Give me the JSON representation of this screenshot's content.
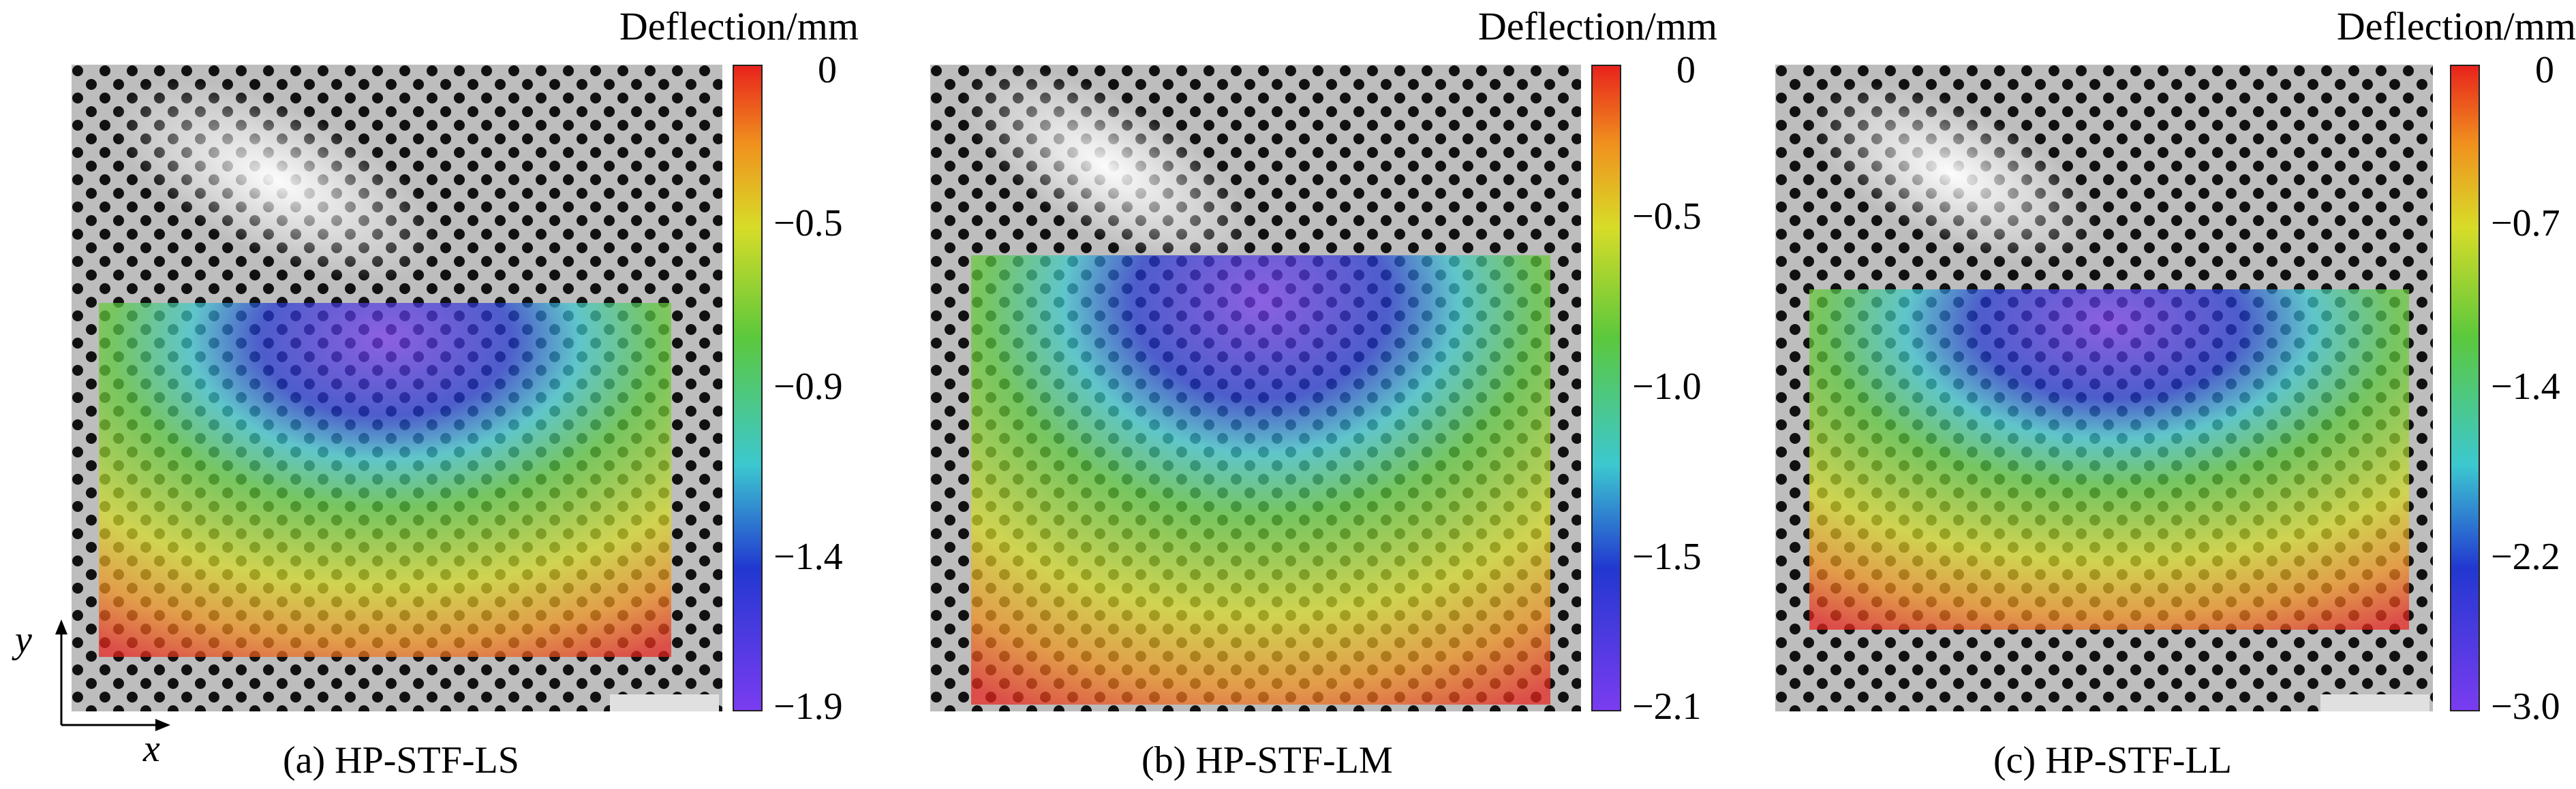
{
  "colorbar_title": "Deflection/mm",
  "colors": {
    "red": "#e8231c",
    "orange": "#f0901e",
    "yellow": "#d8dc28",
    "green": "#5cc83c",
    "cyan": "#3cc8d0",
    "blue": "#2238d0",
    "violet": "#7a3cf0"
  },
  "panels": [
    {
      "caption": "(a) HP-STF-LS",
      "ticks": [
        "0",
        "−0.5",
        "−0.9",
        "−1.4",
        "−1.9"
      ]
    },
    {
      "caption": "(b) HP-STF-LM",
      "ticks": [
        "0",
        "−0.5",
        "−1.0",
        "−1.5",
        "−2.1"
      ]
    },
    {
      "caption": "(c) HP-STF-LL",
      "ticks": [
        "0",
        "−0.7",
        "−1.4",
        "−2.2",
        "−3.0"
      ]
    }
  ],
  "axes": {
    "x": "x",
    "y": "y"
  }
}
